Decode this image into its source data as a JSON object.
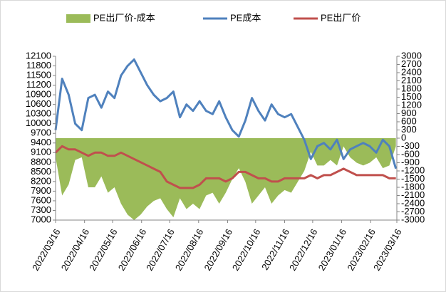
{
  "chart_data": {
    "type": "line",
    "legend": "top",
    "x": [
      "2022/03/16",
      "2022/03/23",
      "2022/03/30",
      "2022/04/06",
      "2022/04/13",
      "2022/04/20",
      "2022/04/27",
      "2022/05/04",
      "2022/05/11",
      "2022/05/18",
      "2022/05/25",
      "2022/06/01",
      "2022/06/08",
      "2022/06/15",
      "2022/06/22",
      "2022/06/29",
      "2022/07/06",
      "2022/07/13",
      "2022/07/20",
      "2022/07/27",
      "2022/08/03",
      "2022/08/10",
      "2022/08/17",
      "2022/08/24",
      "2022/08/31",
      "2022/09/07",
      "2022/09/14",
      "2022/09/21",
      "2022/09/28",
      "2022/10/05",
      "2022/10/12",
      "2022/10/19",
      "2022/10/26",
      "2022/11/02",
      "2022/11/09",
      "2022/11/16",
      "2022/11/23",
      "2022/11/30",
      "2022/12/07",
      "2022/12/14",
      "2022/12/21",
      "2022/12/28",
      "2023/01/04",
      "2023/01/11",
      "2023/01/18",
      "2023/01/25",
      "2023/02/01",
      "2023/02/08",
      "2023/02/15",
      "2023/02/22",
      "2023/03/01",
      "2023/03/08",
      "2023/03/15"
    ],
    "xlim": [
      "2022/03/16",
      "2023/03/16"
    ],
    "xticks": [
      "2022/03/16",
      "2022/04/16",
      "2022/05/16",
      "2022/06/16",
      "2022/07/16",
      "2022/08/16",
      "2022/09/16",
      "2022/10/16",
      "2022/11/16",
      "2022/12/16",
      "2023/01/16",
      "2023/02/16",
      "2023/03/16"
    ],
    "ylim": [
      7000,
      12100
    ],
    "yticks": [
      7000,
      7300,
      7600,
      7900,
      8200,
      8500,
      8800,
      9100,
      9400,
      9700,
      10000,
      10300,
      10600,
      10900,
      11200,
      11500,
      11800,
      12100
    ],
    "y2lim": [
      -3000,
      3000
    ],
    "y2ticks": [
      -3000,
      -2700,
      -2400,
      -2100,
      -1800,
      -1500,
      -1200,
      -900,
      -600,
      -300,
      0,
      300,
      600,
      900,
      1200,
      1500,
      1800,
      2100,
      2400,
      2700,
      3000
    ],
    "series": [
      {
        "name": "PE出厂价-成本",
        "type": "area",
        "axis": "y2",
        "color": "#9bbb59",
        "values": [
          -700,
          -2100,
          -1700,
          -800,
          -700,
          -1800,
          -1800,
          -1400,
          -2000,
          -1800,
          -2400,
          -2800,
          -3000,
          -2800,
          -2500,
          -2300,
          -2200,
          -2600,
          -2900,
          -2200,
          -2600,
          -2400,
          -2600,
          -2100,
          -2000,
          -2400,
          -2000,
          -1500,
          -1100,
          -1600,
          -2400,
          -2100,
          -1800,
          -2400,
          -2100,
          -1900,
          -2000,
          -1600,
          -1200,
          -500,
          -1000,
          -1000,
          -800,
          -1000,
          -300,
          -700,
          -900,
          -1000,
          -900,
          -700,
          -1100,
          -1000,
          -300
        ]
      },
      {
        "name": "PE成本",
        "type": "line",
        "color": "#4f81bd",
        "values": [
          9800,
          11400,
          10900,
          10000,
          9800,
          10800,
          10900,
          10500,
          11000,
          10800,
          11500,
          11800,
          12000,
          11600,
          11200,
          10900,
          10700,
          10800,
          11000,
          10200,
          10600,
          10400,
          10700,
          10400,
          10300,
          10700,
          10200,
          9800,
          9600,
          10100,
          10800,
          10400,
          10100,
          10600,
          10300,
          10200,
          10300,
          9900,
          9500,
          8900,
          9300,
          9400,
          9200,
          9500,
          8900,
          9200,
          9300,
          9400,
          9300,
          9100,
          9500,
          9300,
          8600
        ]
      },
      {
        "name": "PE出厂价",
        "type": "line",
        "color": "#c0504d",
        "values": [
          9100,
          9300,
          9200,
          9200,
          9100,
          9000,
          9100,
          9100,
          9000,
          9000,
          9100,
          9000,
          8900,
          8800,
          8700,
          8600,
          8500,
          8200,
          8100,
          8000,
          8000,
          8000,
          8100,
          8300,
          8300,
          8300,
          8200,
          8300,
          8500,
          8500,
          8400,
          8300,
          8300,
          8200,
          8200,
          8300,
          8300,
          8300,
          8300,
          8400,
          8300,
          8400,
          8400,
          8500,
          8600,
          8500,
          8400,
          8400,
          8400,
          8400,
          8400,
          8300,
          8300
        ]
      }
    ]
  }
}
